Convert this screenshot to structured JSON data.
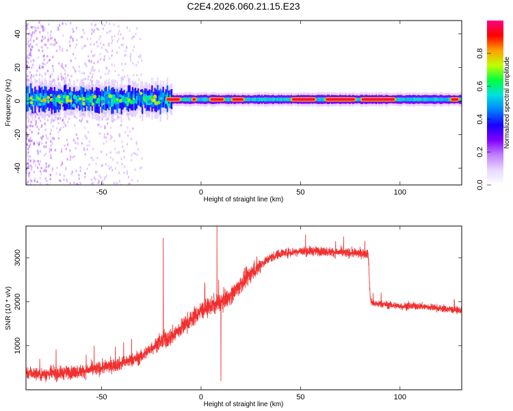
{
  "title": "C2E4.2026.060.21.15.E23",
  "chart_data": [
    {
      "type": "heatmap",
      "xlabel": "Height of straight line (km)",
      "ylabel": "Frequency (Hz)",
      "xlim": [
        -88,
        131
      ],
      "ylim": [
        -50,
        48
      ],
      "xticks": [
        -50,
        0,
        50,
        100
      ],
      "yticks": [
        -40,
        -20,
        0,
        20,
        40
      ],
      "colorbar": {
        "label": "Normalized spectral amplitude",
        "range": [
          0,
          1
        ],
        "ticks": [
          "0.0",
          "0.2",
          "0.4",
          "0.6",
          "0.8"
        ],
        "colormap": [
          "#ffffff",
          "#e8d8ff",
          "#c080ff",
          "#8000ff",
          "#1800ff",
          "#0080ff",
          "#00e0e0",
          "#00ff40",
          "#c0ff00",
          "#ffa000",
          "#ff0000",
          "#ff0080"
        ]
      },
      "ridge": {
        "center_hz": 1,
        "peak_segments_km": [
          [
            -18,
            -10
          ],
          [
            -5,
            -2
          ],
          [
            4,
            12
          ],
          [
            15,
            22
          ],
          [
            45,
            58
          ],
          [
            62,
            78
          ],
          [
            80,
            98
          ],
          [
            125,
            130
          ]
        ]
      }
    },
    {
      "type": "line",
      "xlabel": "Height of straight line (km)",
      "ylabel": "SNR (10 * v/v)",
      "xlim": [
        -88,
        131
      ],
      "ylim": [
        0,
        3720
      ],
      "xticks": [
        -50,
        0,
        50,
        100
      ],
      "yticks": [
        1000,
        2000,
        3000
      ],
      "color": "#f03030",
      "series": [
        {
          "x": [
            -88,
            -80,
            -70,
            -60,
            -50,
            -40,
            -30,
            -25,
            -20,
            -15,
            -10,
            -5,
            0,
            5,
            10,
            15,
            20,
            25,
            30,
            35,
            40,
            50,
            60,
            70,
            80,
            84,
            85,
            86,
            90,
            100,
            110,
            120,
            131
          ],
          "y": [
            400,
            350,
            380,
            420,
            500,
            600,
            750,
            950,
            1100,
            1200,
            1400,
            1600,
            1800,
            1900,
            2000,
            2150,
            2400,
            2650,
            2850,
            3000,
            3100,
            3150,
            3150,
            3120,
            3100,
            3100,
            2100,
            1950,
            1950,
            1900,
            1900,
            1850,
            1800
          ]
        }
      ],
      "spikes": [
        {
          "x": -19,
          "y": 3450
        },
        {
          "x": 8,
          "y": 3720
        },
        {
          "x": 10,
          "y": 200
        }
      ]
    }
  ]
}
